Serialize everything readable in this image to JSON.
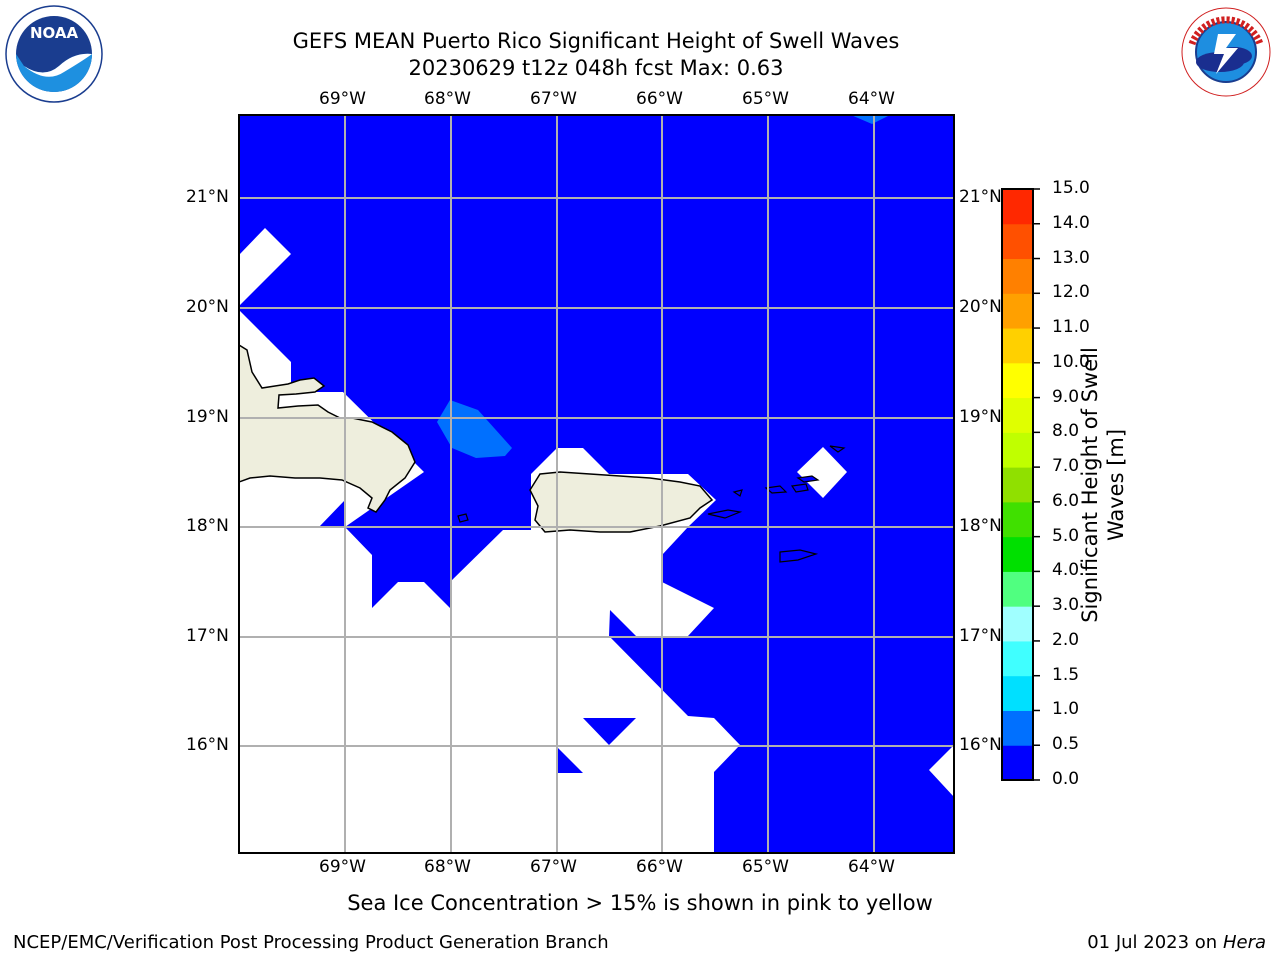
{
  "header": {
    "title_line1": "GEFS MEAN Puerto Rico Significant Height of Swell Waves",
    "title_line2": "20230629 t12z 048h fcst   Max: 0.63"
  },
  "logos": {
    "left": {
      "text": "NOAA",
      "ring_text": "NATIONAL OCEANIC AND ATMOSPHERIC ADMINISTRATION · U.S. DEPARTMENT OF COMMERCE"
    },
    "right": {
      "ring_text": "NATIONAL WEATHER SERVICE"
    }
  },
  "map": {
    "lon_ticks": [
      "69°W",
      "68°W",
      "67°W",
      "66°W",
      "65°W",
      "64°W"
    ],
    "lat_ticks": [
      "21°N",
      "20°N",
      "19°N",
      "18°N",
      "17°N",
      "16°N"
    ],
    "ocean_color": "#0000ff",
    "contour_color": "#0070ff",
    "land_color": "#eeeedd",
    "grid_color": "#b0b0b0"
  },
  "colorbar": {
    "label_line1": "Significant Height of Swell",
    "label_line2": "Waves [m]",
    "levels": [
      "0.0",
      "0.5",
      "1.0",
      "1.5",
      "2.0",
      "3.0",
      "4.0",
      "5.0",
      "6.0",
      "7.0",
      "8.0",
      "9.0",
      "10.0",
      "11.0",
      "12.0",
      "13.0",
      "14.0",
      "15.0"
    ],
    "colors": [
      "#0000ff",
      "#0070ff",
      "#00e0ff",
      "#40ffff",
      "#a0ffff",
      "#50ff80",
      "#00e000",
      "#40e000",
      "#90e000",
      "#c0ff00",
      "#e0ff00",
      "#ffff00",
      "#ffd000",
      "#ffa000",
      "#ff8000",
      "#ff5000",
      "#ff2800",
      "#ff0000"
    ]
  },
  "caption": "Sea Ice Concentration > 15% is shown in pink to yellow",
  "footer": {
    "left": "NCEP/EMC/Verification Post Processing Product Generation Branch",
    "right_prefix": "01 Jul 2023 on ",
    "right_host": "Hera"
  }
}
